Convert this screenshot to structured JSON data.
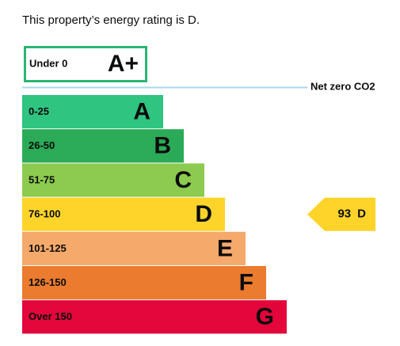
{
  "header": {
    "text": "This property’s energy rating is D."
  },
  "top_band": {
    "range": "Under 0",
    "letter": "A+",
    "color": "#2bb673"
  },
  "net_zero": {
    "label": "Net zero CO2",
    "color": "#a8d8e8"
  },
  "bands": [
    {
      "range": "0-25",
      "letter": "A",
      "color": "#2fc480"
    },
    {
      "range": "26-50",
      "letter": "B",
      "color": "#2bab57"
    },
    {
      "range": "51-75",
      "letter": "C",
      "color": "#8ccb4f"
    },
    {
      "range": "76-100",
      "letter": "D",
      "color": "#ffd42a"
    },
    {
      "range": "101-125",
      "letter": "E",
      "color": "#f5a96b"
    },
    {
      "range": "126-150",
      "letter": "F",
      "color": "#ea7b2f"
    },
    {
      "range": "Over 150",
      "letter": "G",
      "color": "#e2063b"
    }
  ],
  "rating": {
    "score": 93,
    "letter": "D",
    "band": 3,
    "color": "#ffd42a"
  }
}
